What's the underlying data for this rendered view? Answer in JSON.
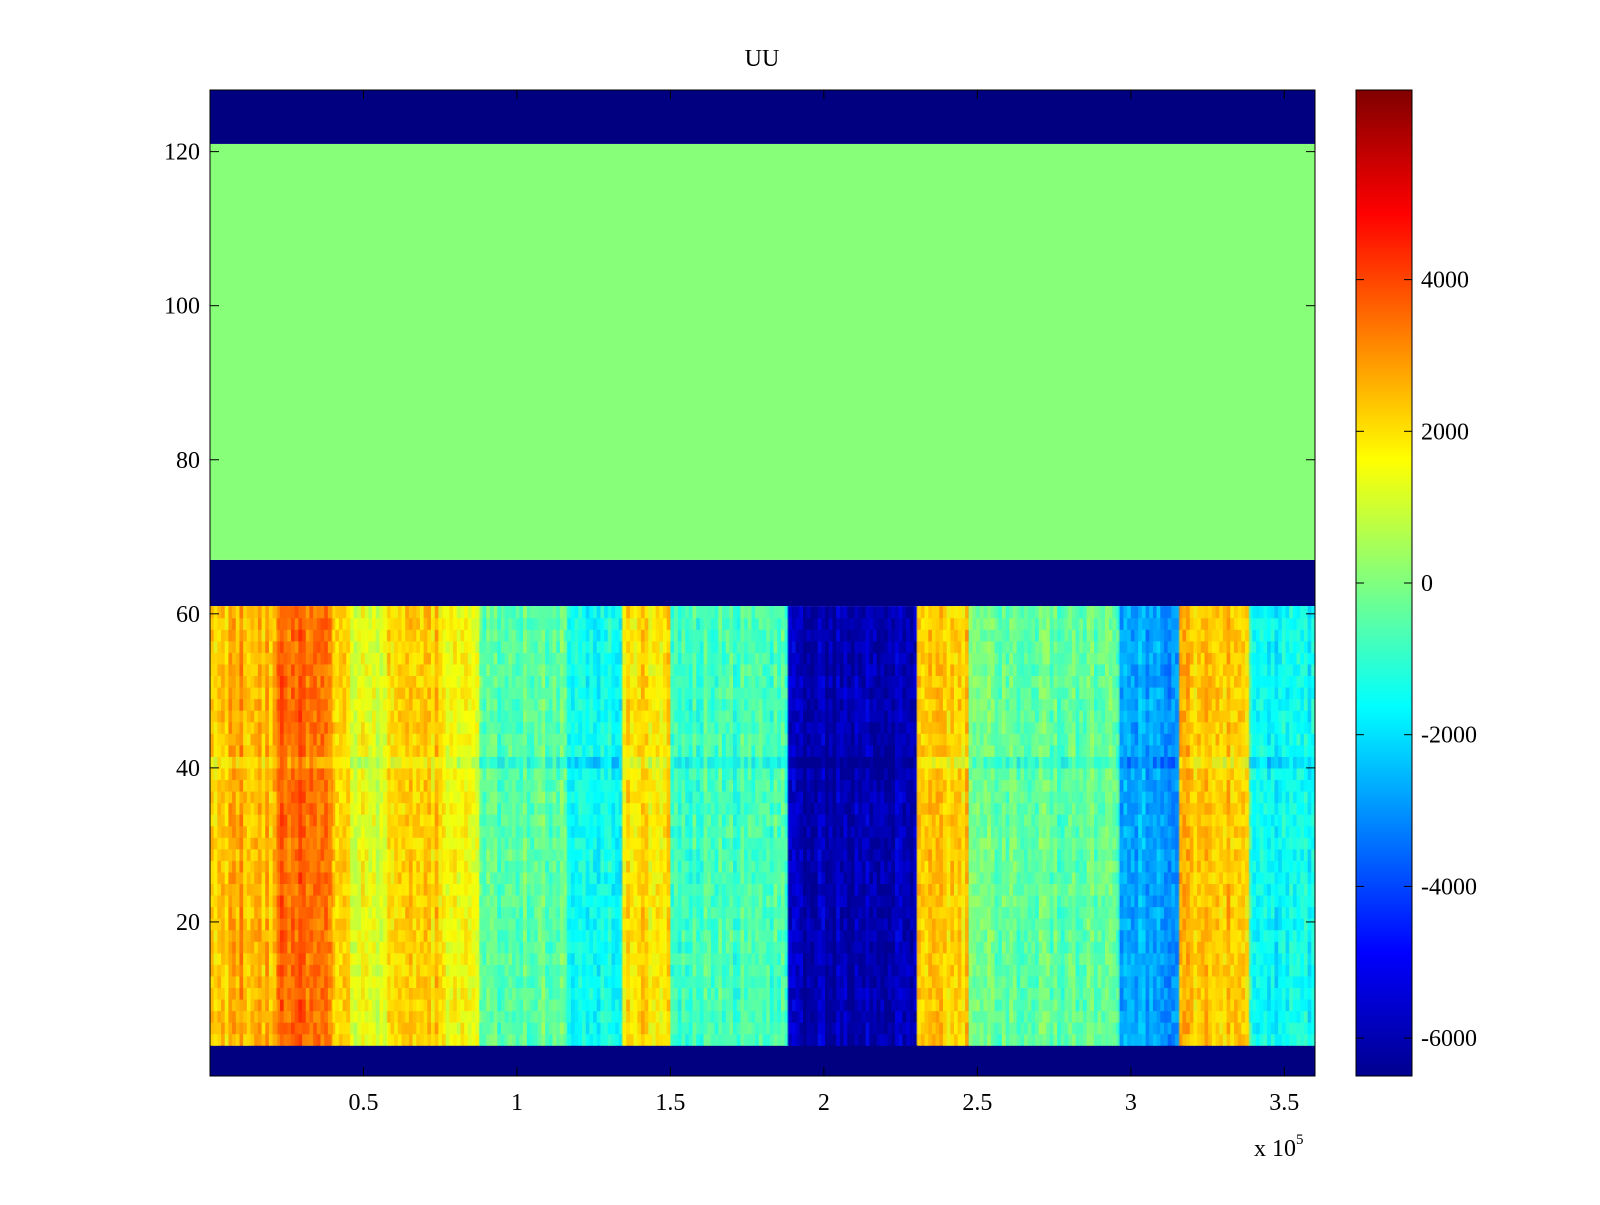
{
  "chart_data": {
    "type": "heatmap",
    "title": "UU",
    "xlabel": "",
    "ylabel": "",
    "x_range": [
      0,
      360000
    ],
    "y_range": [
      0,
      128
    ],
    "x_ticks": [
      {
        "value": 50000,
        "label": "0.5"
      },
      {
        "value": 100000,
        "label": "1"
      },
      {
        "value": 150000,
        "label": "1.5"
      },
      {
        "value": 200000,
        "label": "2"
      },
      {
        "value": 250000,
        "label": "2.5"
      },
      {
        "value": 300000,
        "label": "3"
      },
      {
        "value": 350000,
        "label": "3.5"
      }
    ],
    "x_multiplier_prefix": "x 10",
    "x_multiplier_exponent": "5",
    "y_ticks": [
      {
        "value": 20,
        "label": "20"
      },
      {
        "value": 40,
        "label": "40"
      },
      {
        "value": 60,
        "label": "60"
      },
      {
        "value": 80,
        "label": "80"
      },
      {
        "value": 100,
        "label": "100"
      },
      {
        "value": 120,
        "label": "120"
      }
    ],
    "colormap": "jet",
    "color_range": [
      -6500,
      6500
    ],
    "colorbar_ticks": [
      {
        "value": 4000,
        "label": "4000"
      },
      {
        "value": 2000,
        "label": "2000"
      },
      {
        "value": 0,
        "label": "0"
      },
      {
        "value": -2000,
        "label": "-2000"
      },
      {
        "value": -4000,
        "label": "-4000"
      },
      {
        "value": -6000,
        "label": "-6000"
      }
    ],
    "bands": [
      {
        "name": "lower-blank",
        "y_range": [
          0,
          4
        ],
        "value": -6500
      },
      {
        "name": "lower-data",
        "y_range": [
          4,
          61
        ],
        "value": null
      },
      {
        "name": "middle-blank",
        "y_range": [
          61,
          67
        ],
        "value": -6500
      },
      {
        "name": "upper-flat",
        "y_range": [
          67,
          121
        ],
        "value": 100
      },
      {
        "name": "top-blank",
        "y_range": [
          121,
          128
        ],
        "value": -6500
      }
    ],
    "lower_data_profile": [
      {
        "x_range": [
          0,
          6000
        ],
        "value": 2200
      },
      {
        "x_range": [
          6000,
          12000
        ],
        "value": 2800
      },
      {
        "x_range": [
          12000,
          22000
        ],
        "value": 2400
      },
      {
        "x_range": [
          22000,
          40000
        ],
        "value": 3600
      },
      {
        "x_range": [
          40000,
          46000
        ],
        "value": 2000
      },
      {
        "x_range": [
          46000,
          58000
        ],
        "value": 1200
      },
      {
        "x_range": [
          58000,
          76000
        ],
        "value": 2200
      },
      {
        "x_range": [
          76000,
          88000
        ],
        "value": 1400
      },
      {
        "x_range": [
          88000,
          116000
        ],
        "value": -400
      },
      {
        "x_range": [
          116000,
          134000
        ],
        "value": -1500
      },
      {
        "x_range": [
          134000,
          150000
        ],
        "value": 2000
      },
      {
        "x_range": [
          150000,
          188000
        ],
        "value": -700
      },
      {
        "x_range": [
          188000,
          230000
        ],
        "value": -5800
      },
      {
        "x_range": [
          230000,
          247000
        ],
        "value": 2200
      },
      {
        "x_range": [
          247000,
          296000
        ],
        "value": -400
      },
      {
        "x_range": [
          296000,
          316000
        ],
        "value": -2800
      },
      {
        "x_range": [
          316000,
          339000
        ],
        "value": 2400
      },
      {
        "x_range": [
          339000,
          360000
        ],
        "value": -1500
      }
    ]
  }
}
